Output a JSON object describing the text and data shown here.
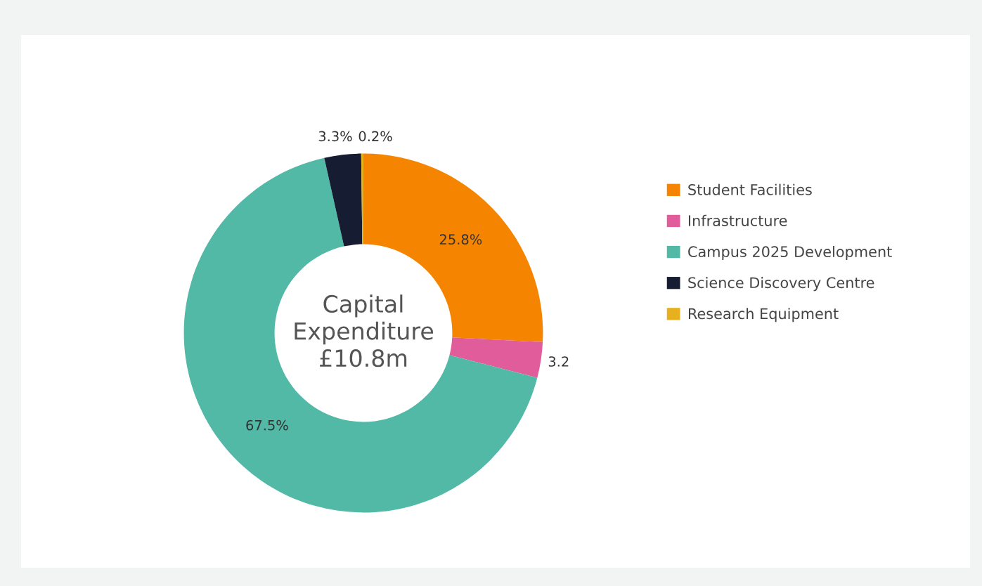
{
  "chart_data": {
    "type": "donut",
    "title": "Capital\nExpenditure\n£10.8m",
    "categories": [
      "Student Facilities",
      "Infrastructure",
      "Campus 2025 Development",
      "Science Discovery Centre",
      "Research Equipment"
    ],
    "values": [
      25.8,
      3.2,
      67.5,
      3.3,
      0.2
    ],
    "colors": [
      "#f58400",
      "#e05c9a",
      "#52b9a6",
      "#161d33",
      "#e6b01e"
    ],
    "value_labels": [
      "25.8%",
      "3.2",
      "67.5%",
      "3.3%",
      "0.2%"
    ],
    "legend": "right"
  }
}
